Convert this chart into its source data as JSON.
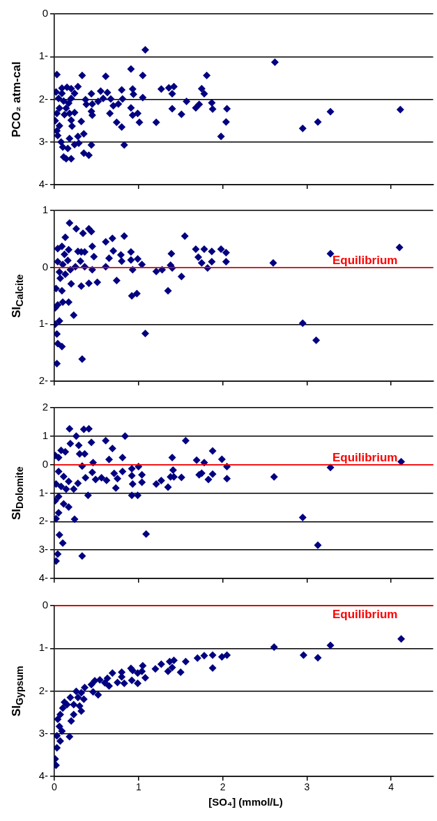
{
  "chart_data": [
    {
      "type": "scatter",
      "ylabel": "PCO₂ atm-cal",
      "color": "#000080",
      "marker": "diamond",
      "grid": "y",
      "tick_labels": "y",
      "xlim": [
        0,
        4.5
      ],
      "xticks": [
        0,
        1,
        2,
        3,
        4
      ],
      "ylim": [
        -4,
        0
      ],
      "yticks": [
        0,
        {
          "value": -1,
          "label": "1-"
        },
        {
          "value": -2,
          "label": "2-"
        },
        {
          "value": -3,
          "label": "3-"
        },
        {
          "value": -4,
          "label": "4-"
        }
      ],
      "x": [
        1.08,
        2.62,
        0.03,
        0.33,
        0.61,
        0.91,
        1.05,
        1.81,
        0.28,
        0.15,
        0.09,
        0.02,
        0.24,
        0.55,
        0.63,
        0.8,
        0.93,
        0.94,
        1.05,
        1.27,
        1.36,
        1.42,
        1.4,
        1.75,
        1.78,
        0.44,
        0.37,
        0.52,
        0.58,
        0.67,
        0.7,
        0.76,
        0.81,
        0.38,
        0.45,
        0.66,
        0.44,
        0.45,
        0.91,
        0.93,
        0.99,
        1.57,
        1.4,
        1.51,
        1.68,
        1.72,
        1.87,
        1.88,
        2.05,
        2.04,
        1.98,
        2.95,
        3.13,
        3.28,
        4.11,
        1.21,
        1.01,
        0.74,
        0.8,
        0.83,
        0.44,
        0.32,
        0.24,
        0.21,
        0.2,
        0.35,
        0.28,
        0.29,
        0.24,
        0.18,
        0.16,
        0.1,
        0.08,
        0.04,
        0.03,
        0.01,
        0.06,
        0.11,
        0.14,
        0.2,
        0.35,
        0.41,
        0.05,
        0.11,
        0.17,
        0.06,
        0.14,
        0.2,
        0.03,
        0.12,
        0.18,
        0.09,
        0.2
      ],
      "values": [
        -0.84,
        -1.13,
        -1.42,
        -1.44,
        -1.46,
        -1.29,
        -1.44,
        -1.44,
        -1.7,
        -1.72,
        -1.86,
        -1.83,
        -1.86,
        -1.81,
        -1.84,
        -1.78,
        -1.76,
        -1.88,
        -1.96,
        -1.76,
        -1.73,
        -1.7,
        -1.87,
        -1.75,
        -1.87,
        -1.87,
        -2.01,
        -2.05,
        -1.98,
        -1.99,
        -2.15,
        -2.11,
        -1.99,
        -2.12,
        -2.11,
        -2.33,
        -2.28,
        -2.37,
        -2.2,
        -2.37,
        -2.33,
        -2.05,
        -2.22,
        -2.35,
        -2.2,
        -2.12,
        -2.08,
        -2.23,
        -2.22,
        -2.53,
        -2.87,
        -2.68,
        -2.53,
        -2.29,
        -2.24,
        -2.54,
        -2.54,
        -2.54,
        -2.65,
        -3.07,
        -3.07,
        -2.52,
        -2.31,
        -2.63,
        -2.49,
        -2.81,
        -2.87,
        -3.03,
        -3.06,
        -2.92,
        -3.15,
        -3.12,
        -3.0,
        -2.85,
        -2.74,
        -2.5,
        -2.62,
        -3.35,
        -3.39,
        -3.39,
        -3.26,
        -3.31,
        -1.98,
        -2.04,
        -2.09,
        -2.21,
        -2.21,
        -1.98,
        -2.33,
        -2.36,
        -2.33,
        -1.74,
        -1.75
      ]
    },
    {
      "type": "scatter",
      "ylabel": "SI$_{Calcite}$",
      "color": "#000080",
      "marker": "diamond",
      "grid": "y",
      "tick_labels": "y",
      "xlim": [
        0,
        4.5
      ],
      "xticks": [
        0,
        1,
        2,
        3,
        4
      ],
      "ylim": [
        -2,
        1
      ],
      "yticks": [
        1,
        0,
        {
          "value": -1,
          "label": "1-"
        },
        {
          "value": -2,
          "label": "2-"
        }
      ],
      "ref_lines": [
        {
          "axis": "y",
          "value": 0,
          "label": "Equilibrium",
          "color": "#ff0000"
        }
      ],
      "x": [
        0.18,
        0.26,
        0.34,
        0.41,
        0.44,
        0.13,
        0.61,
        0.69,
        0.83,
        1.55,
        0.45,
        0.04,
        0.09,
        0.17,
        0.28,
        0.32,
        0.36,
        0.7,
        0.79,
        0.91,
        0.99,
        1.39,
        1.68,
        1.78,
        1.87,
        1.98,
        2.04,
        1.71,
        1.75,
        1.87,
        2.04,
        2.6,
        3.28,
        4.1,
        0.31,
        0.47,
        0.65,
        0.8,
        0.91,
        1.04,
        0.36,
        0.45,
        0.61,
        0.93,
        1.21,
        1.28,
        1.38,
        1.4,
        1.82,
        1.51,
        1.35,
        0.74,
        0.51,
        0.41,
        0.32,
        0.2,
        0.09,
        0.02,
        0.92,
        0.98,
        0.1,
        0.17,
        0.04,
        0.01,
        0.23,
        0.06,
        0.01,
        0.03,
        1.08,
        0.04,
        0.09,
        0.33,
        0.03,
        2.95,
        3.11,
        0.04,
        0.1,
        0.16,
        0.06,
        0.13,
        0.07,
        0.19,
        0.25,
        0.12
      ],
      "values": [
        0.78,
        0.68,
        0.6,
        0.68,
        0.63,
        0.53,
        0.45,
        0.51,
        0.55,
        0.55,
        0.37,
        0.33,
        0.37,
        0.31,
        0.28,
        0.27,
        0.27,
        0.29,
        0.22,
        0.27,
        0.15,
        0.24,
        0.32,
        0.32,
        0.28,
        0.32,
        0.26,
        0.18,
        0.08,
        0.1,
        0.1,
        0.08,
        0.24,
        0.35,
        0.11,
        0.19,
        0.16,
        0.11,
        0.13,
        0.05,
        0.01,
        -0.04,
        0.01,
        -0.04,
        -0.07,
        -0.04,
        0.04,
        -0.01,
        -0.01,
        -0.16,
        -0.41,
        -0.23,
        -0.26,
        -0.28,
        -0.33,
        -0.29,
        -0.41,
        -0.37,
        -0.5,
        -0.46,
        -0.61,
        -0.61,
        -0.66,
        -0.71,
        -0.84,
        -0.94,
        -1.0,
        -1.17,
        -1.16,
        -1.34,
        -1.39,
        -1.61,
        -1.69,
        -0.98,
        -1.28,
        0.1,
        0.05,
        0.12,
        -0.08,
        -0.12,
        -0.19,
        -0.04,
        0.01,
        0.23
      ]
    },
    {
      "type": "scatter",
      "ylabel": "SI$_{Dolomite}$",
      "color": "#000080",
      "marker": "diamond",
      "grid": "y",
      "tick_labels": "y",
      "xlim": [
        0,
        4.5
      ],
      "xticks": [
        0,
        1,
        2,
        3,
        4
      ],
      "ylim": [
        -4,
        2
      ],
      "yticks": [
        2,
        1,
        0,
        {
          "value": -1,
          "label": "1-"
        },
        {
          "value": -2,
          "label": "2-"
        },
        {
          "value": -3,
          "label": "3-"
        },
        {
          "value": -4,
          "label": "4-"
        }
      ],
      "ref_lines": [
        {
          "axis": "y",
          "value": 0,
          "label": "Equilibrium",
          "color": "#ff0000"
        }
      ],
      "x": [
        0.18,
        0.35,
        0.41,
        0.26,
        0.84,
        1.56,
        0.19,
        0.29,
        0.44,
        0.61,
        0.69,
        1.88,
        0.08,
        0.13,
        0.01,
        0.05,
        0.3,
        0.36,
        0.65,
        0.81,
        1.4,
        1.69,
        1.99,
        1.78,
        0.46,
        0.33,
        2.05,
        4.12,
        3.28,
        2.61,
        0.92,
        1.0,
        0.81,
        0.71,
        0.45,
        0.92,
        1.04,
        1.41,
        1.38,
        1.42,
        1.51,
        1.72,
        1.75,
        1.88,
        1.83,
        2.05,
        0.37,
        0.49,
        0.56,
        0.62,
        0.75,
        0.93,
        1.04,
        1.21,
        1.27,
        1.35,
        0.73,
        0.4,
        0.92,
        0.99,
        0.28,
        0.23,
        0.05,
        0.11,
        0.17,
        0.08,
        0.14,
        0.02,
        0.05,
        0.01,
        0.11,
        0.17,
        0.05,
        0.02,
        0.24,
        0.06,
        0.1,
        1.09,
        0.04,
        0.02,
        0.33,
        2.95,
        3.13
      ],
      "values": [
        1.26,
        1.24,
        1.26,
        1.0,
        1.0,
        0.84,
        0.74,
        0.68,
        0.78,
        0.84,
        0.57,
        0.48,
        0.5,
        0.45,
        0.32,
        0.25,
        0.38,
        0.38,
        0.18,
        0.25,
        0.25,
        0.16,
        0.19,
        0.07,
        0.07,
        -0.05,
        -0.07,
        0.1,
        -0.1,
        -0.43,
        -0.14,
        -0.07,
        -0.24,
        -0.31,
        -0.27,
        -0.39,
        -0.36,
        -0.19,
        -0.43,
        -0.43,
        -0.45,
        -0.36,
        -0.3,
        -0.33,
        -0.52,
        -0.49,
        -0.46,
        -0.52,
        -0.46,
        -0.55,
        -0.49,
        -0.68,
        -0.62,
        -0.68,
        -0.56,
        -0.79,
        -0.82,
        -1.08,
        -1.08,
        -1.08,
        -0.66,
        -0.86,
        -0.24,
        -0.42,
        -0.59,
        -0.77,
        -0.86,
        -0.68,
        -1.12,
        -1.27,
        -1.38,
        -1.49,
        -1.69,
        -1.9,
        -1.92,
        -2.47,
        -2.76,
        -2.44,
        -3.14,
        -3.39,
        -3.21,
        -1.86,
        -2.83
      ]
    },
    {
      "type": "scatter",
      "ylabel": "SI$_{Gypsum}$",
      "xlabel": "[SO₄] (mmol/L)",
      "color": "#000080",
      "marker": "diamond",
      "grid": "y",
      "xlim": [
        0,
        4.5
      ],
      "xticks": [
        0,
        1,
        2,
        3,
        4
      ],
      "ylim": [
        -4,
        0
      ],
      "yticks": [
        0,
        {
          "value": -1,
          "label": "1-"
        },
        {
          "value": -2,
          "label": "2-"
        },
        {
          "value": -3,
          "label": "3-"
        },
        {
          "value": -4,
          "label": "4-"
        }
      ],
      "ref_lines": [
        {
          "axis": "y",
          "value": 0,
          "label": "Equilibrium",
          "color": "#ff0000"
        }
      ],
      "x": [
        4.12,
        3.28,
        2.61,
        2.96,
        3.13,
        2.05,
        1.99,
        1.88,
        1.78,
        1.7,
        1.88,
        1.56,
        1.42,
        1.37,
        1.4,
        1.35,
        1.5,
        1.27,
        1.2,
        1.05,
        1.04,
        0.99,
        0.91,
        0.93,
        1.08,
        0.99,
        0.92,
        0.83,
        0.8,
        0.8,
        0.75,
        0.69,
        0.65,
        0.63,
        0.6,
        0.54,
        0.48,
        0.44,
        0.52,
        0.46,
        0.36,
        0.32,
        0.26,
        0.19,
        0.35,
        0.32,
        0.3,
        0.23,
        0.2,
        0.18,
        0.15,
        0.1,
        0.07,
        0.04,
        0.12,
        0.06,
        0.09,
        0.03,
        0.07,
        0.03,
        0.01,
        0.02,
        0.23,
        0.28
      ],
      "values": [
        -0.78,
        -0.93,
        -0.97,
        -1.16,
        -1.22,
        -1.16,
        -1.2,
        -1.16,
        -1.17,
        -1.23,
        -1.46,
        -1.31,
        -1.28,
        -1.31,
        -1.45,
        -1.54,
        -1.56,
        -1.37,
        -1.48,
        -1.41,
        -1.54,
        -1.58,
        -1.47,
        -1.52,
        -1.69,
        -1.82,
        -1.75,
        -1.82,
        -1.56,
        -1.67,
        -1.8,
        -1.58,
        -1.88,
        -1.7,
        -1.81,
        -1.74,
        -1.76,
        -1.85,
        -2.09,
        -2.02,
        -1.92,
        -2.04,
        -2.01,
        -2.15,
        -2.19,
        -2.47,
        -2.35,
        -2.55,
        -2.7,
        -3.07,
        -2.32,
        -2.4,
        -2.55,
        -2.66,
        -2.26,
        -2.83,
        -2.94,
        -3.05,
        -3.17,
        -3.33,
        -3.59,
        -3.74,
        -2.32,
        -2.15
      ]
    }
  ]
}
